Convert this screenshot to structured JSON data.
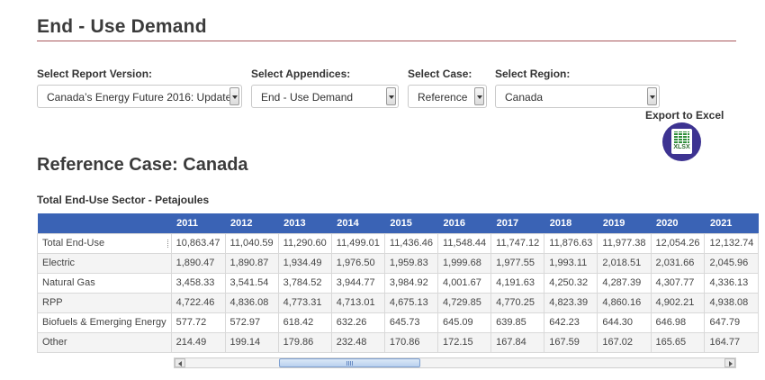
{
  "header": {
    "title": "End - Use Demand"
  },
  "filters": {
    "report_version": {
      "label": "Select Report Version:",
      "value": "Canada’s Energy Future 2016: Update"
    },
    "appendices": {
      "label": "Select Appendices:",
      "value": "End - Use Demand"
    },
    "case": {
      "label": "Select Case:",
      "value": "Reference"
    },
    "region": {
      "label": "Select Region:",
      "value": "Canada"
    }
  },
  "export": {
    "label": "Export to Excel",
    "icon_text": "XLSX",
    "icon": "excel-file-icon"
  },
  "case_title": "Reference Case: Canada",
  "table": {
    "caption": "Total End-Use Sector - Petajoules",
    "columns": [
      "",
      "2011",
      "2012",
      "2013",
      "2014",
      "2015",
      "2016",
      "2017",
      "2018",
      "2019",
      "2020",
      "2021"
    ],
    "rows": [
      {
        "label": "Total End-Use",
        "values": [
          "10,863.47",
          "11,040.59",
          "11,290.60",
          "11,499.01",
          "11,436.46",
          "11,548.44",
          "11,747.12",
          "11,876.63",
          "11,977.38",
          "12,054.26",
          "12,132.74"
        ]
      },
      {
        "label": "Electric",
        "values": [
          "1,890.47",
          "1,890.87",
          "1,934.49",
          "1,976.50",
          "1,959.83",
          "1,999.68",
          "1,977.55",
          "1,993.11",
          "2,018.51",
          "2,031.66",
          "2,045.96"
        ]
      },
      {
        "label": "Natural Gas",
        "values": [
          "3,458.33",
          "3,541.54",
          "3,784.52",
          "3,944.77",
          "3,984.92",
          "4,001.67",
          "4,191.63",
          "4,250.32",
          "4,287.39",
          "4,307.77",
          "4,336.13"
        ]
      },
      {
        "label": "RPP",
        "values": [
          "4,722.46",
          "4,836.08",
          "4,773.31",
          "4,713.01",
          "4,675.13",
          "4,729.85",
          "4,770.25",
          "4,823.39",
          "4,860.16",
          "4,902.21",
          "4,938.08"
        ]
      },
      {
        "label": "Biofuels & Emerging Energy",
        "values": [
          "577.72",
          "572.97",
          "618.42",
          "632.26",
          "645.73",
          "645.09",
          "639.85",
          "642.23",
          "644.30",
          "646.98",
          "647.79"
        ]
      },
      {
        "label": "Other",
        "values": [
          "214.49",
          "199.14",
          "179.86",
          "232.48",
          "170.86",
          "172.15",
          "167.84",
          "167.59",
          "167.02",
          "165.65",
          "164.77"
        ]
      }
    ]
  },
  "colors": {
    "header_bg": "#3a63b5",
    "title_rule": "#a8575c",
    "export_circle": "#3d3391"
  }
}
